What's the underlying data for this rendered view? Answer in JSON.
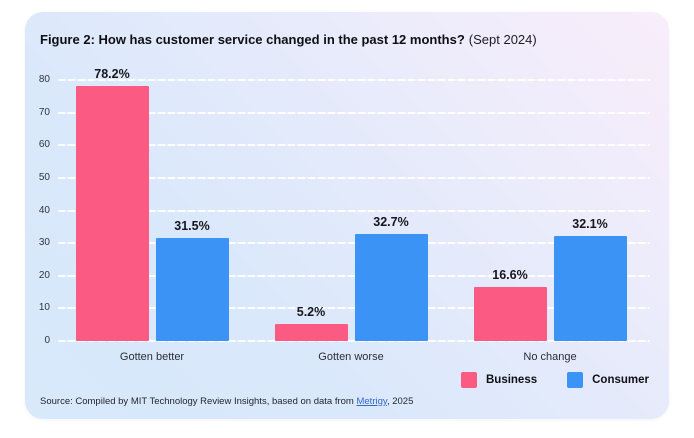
{
  "card": {
    "title_bold": "Figure 2: How has customer service changed in the past 12 months?",
    "title_regular": "(Sept 2024)",
    "source_prefix": "Source: Compiled by MIT Technology Review Insights, based on data from ",
    "source_link": "Metrigy",
    "source_suffix": ", 2025"
  },
  "chart_data": {
    "type": "bar",
    "title": "How has customer service changed in the past 12 months? (Sept 2024)",
    "categories": [
      "Gotten better",
      "Gotten worse",
      "No change"
    ],
    "series": [
      {
        "name": "Business",
        "color": "#fb5b82",
        "values": [
          78.2,
          5.2,
          16.6
        ]
      },
      {
        "name": "Consumer",
        "color": "#3c93f6",
        "values": [
          31.5,
          32.7,
          32.1
        ]
      }
    ],
    "value_suffix": "%",
    "xlabel": "",
    "ylabel": "",
    "ylim": [
      0,
      80
    ],
    "ytick_step": 10,
    "grid": true,
    "legend_position": "bottom-right"
  }
}
